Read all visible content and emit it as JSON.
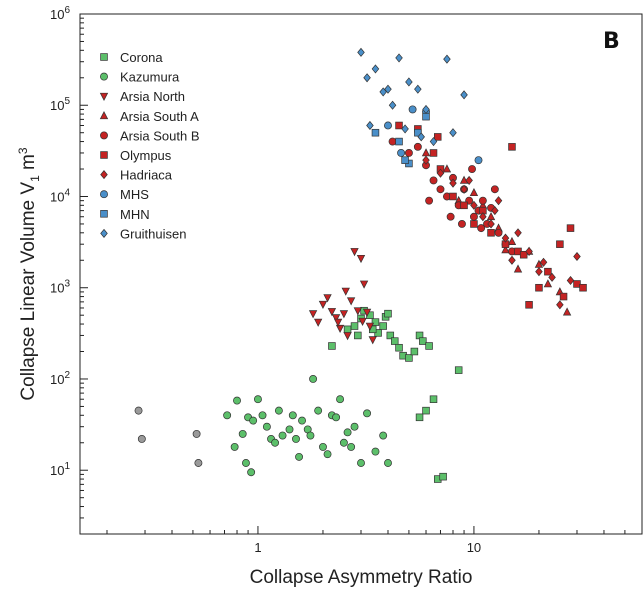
{
  "chart_data": {
    "type": "scatter",
    "panel_label": "B",
    "xlabel": "Collapse Asymmetry Ratio",
    "ylabel": "Collapse Linear Volume  V",
    "ylabel_sub": "1",
    "ylabel_unit": " m",
    "ylabel_unit_sup": "3",
    "x_scale": "log",
    "y_scale": "log",
    "xlim": [
      0.15,
      60
    ],
    "ylim": [
      2,
      1000000
    ],
    "grid": false,
    "legend_position": "top-left",
    "x_ticks": [
      {
        "value": 1,
        "label": "1"
      },
      {
        "value": 10,
        "label": "10"
      }
    ],
    "y_ticks": [
      {
        "value": 10,
        "base": "10",
        "exp": "1"
      },
      {
        "value": 100,
        "base": "10",
        "exp": "2"
      },
      {
        "value": 1000,
        "base": "10",
        "exp": "3"
      },
      {
        "value": 10000,
        "base": "10",
        "exp": "4"
      },
      {
        "value": 100000,
        "base": "10",
        "exp": "5"
      },
      {
        "value": 1000000,
        "base": "10",
        "exp": "6"
      }
    ],
    "series": [
      {
        "name": "Corona",
        "marker": "square",
        "color": "#5cbf6a",
        "points": [
          [
            2.2,
            230
          ],
          [
            2.6,
            350
          ],
          [
            2.8,
            380
          ],
          [
            3.0,
            460
          ],
          [
            3.1,
            560
          ],
          [
            3.3,
            500
          ],
          [
            3.5,
            420
          ],
          [
            3.6,
            320
          ],
          [
            3.8,
            380
          ],
          [
            3.9,
            480
          ],
          [
            4.1,
            300
          ],
          [
            4.3,
            260
          ],
          [
            4.5,
            220
          ],
          [
            4.7,
            180
          ],
          [
            5.0,
            170
          ],
          [
            5.3,
            200
          ],
          [
            5.6,
            300
          ],
          [
            5.8,
            260
          ],
          [
            6.2,
            230
          ],
          [
            3.4,
            350
          ],
          [
            4.0,
            520
          ],
          [
            2.9,
            300
          ],
          [
            8.5,
            125
          ],
          [
            6.5,
            60
          ],
          [
            6.0,
            45
          ],
          [
            5.6,
            38
          ],
          [
            6.8,
            8
          ],
          [
            7.2,
            8.5
          ]
        ]
      },
      {
        "name": "Kazumura",
        "marker": "circle",
        "color": "#5cbf6a",
        "points": [
          [
            0.72,
            40
          ],
          [
            0.8,
            58
          ],
          [
            0.85,
            25
          ],
          [
            0.9,
            38
          ],
          [
            0.95,
            35
          ],
          [
            1.05,
            40
          ],
          [
            1.1,
            30
          ],
          [
            1.15,
            22
          ],
          [
            1.2,
            20
          ],
          [
            1.3,
            24
          ],
          [
            1.4,
            28
          ],
          [
            1.45,
            40
          ],
          [
            1.5,
            22
          ],
          [
            1.6,
            35
          ],
          [
            1.7,
            28
          ],
          [
            1.75,
            24
          ],
          [
            1.8,
            100
          ],
          [
            1.9,
            45
          ],
          [
            2.0,
            18
          ],
          [
            2.1,
            15
          ],
          [
            2.2,
            40
          ],
          [
            2.4,
            60
          ],
          [
            2.5,
            20
          ],
          [
            2.6,
            26
          ],
          [
            2.7,
            18
          ],
          [
            2.8,
            30
          ],
          [
            3.0,
            12
          ],
          [
            3.2,
            42
          ],
          [
            3.5,
            16
          ],
          [
            4.0,
            12
          ],
          [
            1.0,
            60
          ],
          [
            1.25,
            45
          ],
          [
            0.88,
            12
          ],
          [
            0.93,
            9.5
          ],
          [
            1.55,
            14
          ],
          [
            2.3,
            38
          ],
          [
            3.8,
            24
          ],
          [
            0.78,
            18
          ]
        ]
      },
      {
        "name": "Arsia North",
        "marker": "tri-down",
        "color": "#c42323",
        "points": [
          [
            1.8,
            520
          ],
          [
            2.0,
            660
          ],
          [
            2.2,
            550
          ],
          [
            2.3,
            470
          ],
          [
            2.4,
            360
          ],
          [
            2.5,
            520
          ],
          [
            2.6,
            300
          ],
          [
            2.7,
            720
          ],
          [
            2.8,
            2500
          ],
          [
            2.9,
            560
          ],
          [
            3.0,
            2100
          ],
          [
            3.1,
            1100
          ],
          [
            3.2,
            540
          ],
          [
            3.3,
            380
          ],
          [
            3.4,
            270
          ],
          [
            1.9,
            420
          ],
          [
            2.55,
            920
          ],
          [
            3.05,
            430
          ],
          [
            2.35,
            420
          ],
          [
            2.1,
            780
          ]
        ]
      },
      {
        "name": "Arsia South A",
        "marker": "tri-up",
        "color": "#c42323",
        "points": [
          [
            6.0,
            30000
          ],
          [
            7.5,
            20000
          ],
          [
            9.0,
            15000
          ],
          [
            10.0,
            11000
          ],
          [
            11.0,
            8000
          ],
          [
            12.0,
            6000
          ],
          [
            13.0,
            4500
          ],
          [
            15.0,
            3200
          ],
          [
            18.0,
            2500
          ],
          [
            20.0,
            1800
          ],
          [
            22.0,
            1100
          ],
          [
            25.0,
            900
          ],
          [
            27.0,
            540
          ],
          [
            14.0,
            2600
          ],
          [
            16.0,
            1600
          ],
          [
            8.5,
            9000
          ]
        ]
      },
      {
        "name": "Arsia South B",
        "marker": "circle",
        "color": "#c42323",
        "points": [
          [
            4.2,
            40000
          ],
          [
            5.0,
            30000
          ],
          [
            5.5,
            35000
          ],
          [
            6.0,
            22000
          ],
          [
            6.5,
            15000
          ],
          [
            7.0,
            12000
          ],
          [
            7.5,
            10000
          ],
          [
            8.0,
            16000
          ],
          [
            8.5,
            8000
          ],
          [
            9.0,
            12000
          ],
          [
            9.5,
            9000
          ],
          [
            10.0,
            6000
          ],
          [
            10.5,
            7000
          ],
          [
            11.0,
            9000
          ],
          [
            11.5,
            5000
          ],
          [
            12.0,
            7500
          ],
          [
            13.0,
            4000
          ],
          [
            14.0,
            3000
          ],
          [
            15.0,
            2500
          ],
          [
            9.8,
            20000
          ],
          [
            7.8,
            6000
          ],
          [
            8.8,
            5000
          ],
          [
            6.2,
            9000
          ],
          [
            12.5,
            12000
          ],
          [
            10.8,
            4500
          ]
        ]
      },
      {
        "name": "Olympus",
        "marker": "square",
        "color": "#c42323",
        "points": [
          [
            4.5,
            60000
          ],
          [
            5.5,
            55000
          ],
          [
            6.5,
            30000
          ],
          [
            7.0,
            20000
          ],
          [
            8.0,
            10000
          ],
          [
            9.0,
            8000
          ],
          [
            10.0,
            5000
          ],
          [
            12.0,
            4000
          ],
          [
            14.0,
            3000
          ],
          [
            15.0,
            35000
          ],
          [
            16.0,
            2500
          ],
          [
            18.0,
            650
          ],
          [
            20.0,
            1000
          ],
          [
            22.0,
            1500
          ],
          [
            25.0,
            3000
          ],
          [
            28.0,
            4500
          ],
          [
            30.0,
            1100
          ],
          [
            32.0,
            1000
          ],
          [
            26.0,
            800
          ],
          [
            17.0,
            2300
          ],
          [
            11.0,
            7000
          ],
          [
            6.8,
            45000
          ]
        ]
      },
      {
        "name": "Hadriaca",
        "marker": "diamond",
        "color": "#c42323",
        "points": [
          [
            6.0,
            25000
          ],
          [
            7.0,
            18000
          ],
          [
            8.0,
            14000
          ],
          [
            9.0,
            12000
          ],
          [
            10.0,
            8000
          ],
          [
            11.0,
            6000
          ],
          [
            12.0,
            5000
          ],
          [
            13.0,
            9000
          ],
          [
            14.0,
            3500
          ],
          [
            15.0,
            2000
          ],
          [
            16.0,
            4000
          ],
          [
            18.0,
            2500
          ],
          [
            20.0,
            1500
          ],
          [
            23.0,
            1300
          ],
          [
            28.0,
            1200
          ],
          [
            30.0,
            2200
          ],
          [
            25.0,
            650
          ],
          [
            21.0,
            1900
          ],
          [
            9.5,
            15000
          ],
          [
            12.5,
            7000
          ]
        ]
      },
      {
        "name": "MHS",
        "marker": "circle",
        "color": "#4a8fc9",
        "points": [
          [
            5.2,
            90000
          ],
          [
            6.0,
            85000
          ],
          [
            10.5,
            25000
          ],
          [
            4.0,
            60000
          ],
          [
            4.6,
            30000
          ]
        ]
      },
      {
        "name": "MHN",
        "marker": "square",
        "color": "#4a8fc9",
        "points": [
          [
            3.5,
            50000
          ],
          [
            4.5,
            40000
          ],
          [
            5.0,
            23000
          ],
          [
            5.5,
            50000
          ],
          [
            6.0,
            75000
          ],
          [
            4.8,
            25000
          ]
        ]
      },
      {
        "name": "Gruithuisen",
        "marker": "diamond",
        "color": "#4a8fc9",
        "points": [
          [
            3.0,
            380000
          ],
          [
            3.5,
            250000
          ],
          [
            4.0,
            150000
          ],
          [
            4.5,
            330000
          ],
          [
            5.0,
            180000
          ],
          [
            5.5,
            150000
          ],
          [
            3.2,
            200000
          ],
          [
            3.8,
            140000
          ],
          [
            4.2,
            100000
          ],
          [
            6.0,
            90000
          ],
          [
            7.5,
            320000
          ],
          [
            9.0,
            130000
          ],
          [
            8.0,
            50000
          ],
          [
            4.8,
            55000
          ],
          [
            5.7,
            45000
          ],
          [
            6.5,
            40000
          ],
          [
            3.3,
            60000
          ]
        ]
      },
      {
        "name": "",
        "marker": "circle",
        "color": "#9a9a9a",
        "legend": false,
        "points": [
          [
            0.28,
            45
          ],
          [
            0.29,
            22
          ],
          [
            0.52,
            25
          ],
          [
            0.53,
            12
          ]
        ]
      }
    ]
  }
}
